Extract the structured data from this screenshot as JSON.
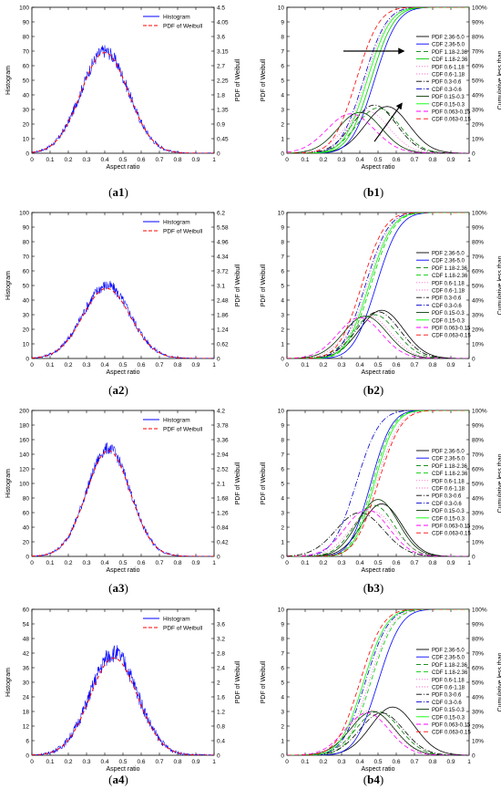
{
  "figure": {
    "captions": {
      "a1": {
        "open": "(",
        "letter": "a1",
        "close": ")"
      },
      "b1": {
        "open": "(",
        "letter": "b1",
        "close": ")"
      },
      "a2": {
        "open": "(",
        "letter": "a2",
        "close": ")"
      },
      "b2": {
        "open": "(",
        "letter": "b2",
        "close": ")"
      },
      "a3": {
        "open": "(",
        "letter": "a3",
        "close": ")"
      },
      "b3": {
        "open": "(",
        "letter": "b3",
        "close": ")"
      },
      "a4": {
        "open": "(",
        "letter": "a4",
        "close": ")"
      },
      "b4": {
        "open": "(",
        "letter": "b4",
        "close": ")"
      }
    }
  },
  "chart_data": [
    {
      "id": "a1",
      "type": "line",
      "xlabel": "Aspect ratio",
      "ylabel": "Histogram",
      "y2label": "PDF of Weibull",
      "xlim": [
        0,
        1
      ],
      "ylim": [
        0,
        100
      ],
      "y2lim": [
        0,
        4.5
      ],
      "xticks": [
        "0",
        "0.1",
        "0.2",
        "0.3",
        "0.4",
        "0.5",
        "0.6",
        "0.7",
        "0.8",
        "0.9",
        "1"
      ],
      "yticks": [
        "0",
        "10",
        "20",
        "30",
        "40",
        "50",
        "60",
        "70",
        "80",
        "90",
        "100"
      ],
      "y2ticks": [
        "0",
        "0.45",
        "0.9",
        "1.35",
        "1.8",
        "2.25",
        "2.7",
        "3.15",
        "3.6",
        "4.05",
        "4.5"
      ],
      "legend": [
        "Histogram",
        "PDF of Weibull"
      ],
      "series": [
        {
          "name": "Histogram",
          "color": "#0000ff",
          "style": "solid",
          "peak_x": 0.4,
          "peak_y": 70,
          "sd": 0.13,
          "noise": 0.15
        },
        {
          "name": "PDF of Weibull",
          "color": "#ff0000",
          "style": "dashed",
          "peak_x": 0.4,
          "peak_y": 69,
          "sd": 0.13
        }
      ]
    },
    {
      "id": "a2",
      "type": "line",
      "xlabel": "Aspect ratio",
      "ylabel": "Histogram",
      "y2label": "PDF of Weibull",
      "xlim": [
        0,
        1
      ],
      "ylim": [
        0,
        100
      ],
      "y2lim": [
        0,
        6.2
      ],
      "xticks": [
        "0",
        "0.1",
        "0.2",
        "0.3",
        "0.4",
        "0.5",
        "0.6",
        "0.7",
        "0.8",
        "0.9",
        "1"
      ],
      "yticks": [
        "0",
        "10",
        "20",
        "30",
        "40",
        "50",
        "60",
        "70",
        "80",
        "90",
        "100"
      ],
      "y2ticks": [
        "0",
        "0.62",
        "1.24",
        "1.86",
        "2.48",
        "3.1",
        "3.72",
        "4.34",
        "4.96",
        "5.58",
        "6.2"
      ],
      "legend": [
        "Histogram",
        "PDF of Weibull"
      ],
      "series": [
        {
          "name": "Histogram",
          "color": "#0000ff",
          "style": "solid",
          "peak_x": 0.41,
          "peak_y": 50,
          "sd": 0.13,
          "noise": 0.18
        },
        {
          "name": "PDF of Weibull",
          "color": "#ff0000",
          "style": "dashed",
          "peak_x": 0.41,
          "peak_y": 48,
          "sd": 0.13
        }
      ]
    },
    {
      "id": "a3",
      "type": "line",
      "xlabel": "Aspect ratio",
      "ylabel": "Histogram",
      "y2label": "PDF of Weibull",
      "xlim": [
        0,
        1
      ],
      "ylim": [
        0,
        200
      ],
      "y2lim": [
        0,
        4.2
      ],
      "xticks": [
        "0",
        "0.1",
        "0.2",
        "0.3",
        "0.4",
        "0.5",
        "0.6",
        "0.7",
        "0.8",
        "0.9",
        "1"
      ],
      "yticks": [
        "0",
        "20",
        "40",
        "60",
        "80",
        "100",
        "120",
        "140",
        "160",
        "180",
        "200"
      ],
      "y2ticks": [
        "0",
        "0.42",
        "0.84",
        "1.26",
        "1.68",
        "2.1",
        "2.52",
        "2.94",
        "3.36",
        "3.78",
        "4.2"
      ],
      "legend": [
        "Histogram",
        "PDF of Weibull"
      ],
      "series": [
        {
          "name": "Histogram",
          "color": "#0000ff",
          "style": "solid",
          "peak_x": 0.42,
          "peak_y": 148,
          "sd": 0.12,
          "noise": 0.12
        },
        {
          "name": "PDF of Weibull",
          "color": "#ff0000",
          "style": "dashed",
          "peak_x": 0.42,
          "peak_y": 145,
          "sd": 0.12
        }
      ]
    },
    {
      "id": "a4",
      "type": "line",
      "xlabel": "Aspect ratio",
      "ylabel": "Histogram",
      "y2label": "PDF of Weibull",
      "xlim": [
        0,
        1
      ],
      "ylim": [
        0,
        60
      ],
      "y2lim": [
        0,
        4
      ],
      "xticks": [
        "0",
        "0.1",
        "0.2",
        "0.3",
        "0.4",
        "0.5",
        "0.6",
        "0.7",
        "0.8",
        "0.9",
        "1"
      ],
      "yticks": [
        "0",
        "6",
        "12",
        "18",
        "24",
        "30",
        "36",
        "42",
        "48",
        "54",
        "60"
      ],
      "y2ticks": [
        "0",
        "0.4",
        "0.8",
        "1.2",
        "1.6",
        "2",
        "2.4",
        "2.8",
        "3.2",
        "3.6",
        "4"
      ],
      "legend": [
        "Histogram",
        "PDF of Weibull"
      ],
      "series": [
        {
          "name": "Histogram",
          "color": "#0000ff",
          "style": "solid",
          "peak_x": 0.45,
          "peak_y": 42,
          "sd": 0.13,
          "noise": 0.2
        },
        {
          "name": "PDF of Weibull",
          "color": "#ff0000",
          "style": "dashed",
          "peak_x": 0.45,
          "peak_y": 40,
          "sd": 0.13
        }
      ]
    },
    {
      "id": "b1",
      "type": "line",
      "xlabel": "Aspect ratio",
      "ylabel": "PDF of Weibull",
      "y2label": "Cumulative less than",
      "xlim": [
        0,
        1
      ],
      "ylim": [
        0,
        10
      ],
      "xticks": [
        "0",
        "0.1",
        "0.2",
        "0.3",
        "0.4",
        "0.5",
        "0.6",
        "0.7",
        "0.8",
        "0.9",
        "1"
      ],
      "yticks": [
        "0",
        "1",
        "2",
        "3",
        "4",
        "5",
        "6",
        "7",
        "8",
        "9",
        "10"
      ],
      "y2ticks": [
        "0",
        "10%",
        "20%",
        "30%",
        "40%",
        "50%",
        "60%",
        "70%",
        "80%",
        "90%",
        "100%"
      ],
      "arrows": true,
      "series": [
        {
          "name": "PDF 2.36-5.0",
          "kind": "pdf",
          "color": "#000000",
          "dash": "",
          "mu": 0.55,
          "sd": 0.12,
          "peak": 3.2
        },
        {
          "name": "CDF 2.36-5.0",
          "kind": "cdf",
          "color": "#0000ff",
          "dash": "",
          "mu": 0.48,
          "sd": 0.1
        },
        {
          "name": "PDF 1.18-2.36",
          "kind": "pdf",
          "color": "#008000",
          "dash": "5,3",
          "mu": 0.5,
          "sd": 0.12,
          "peak": 3.1
        },
        {
          "name": "CDF 1.18-2.36",
          "kind": "cdf",
          "color": "#00cc00",
          "dash": "",
          "mu": 0.46,
          "sd": 0.1
        },
        {
          "name": "PDF 0.6-1.18",
          "kind": "pdf",
          "color": "#ff66cc",
          "dash": "1,2",
          "mu": 0.44,
          "sd": 0.12,
          "peak": 2.9
        },
        {
          "name": "CDF 0.6-1.18",
          "kind": "cdf",
          "color": "#ff66cc",
          "dash": "1,2",
          "mu": 0.43,
          "sd": 0.1
        },
        {
          "name": "PDF 0.3-0.6",
          "kind": "pdf",
          "color": "#000000",
          "dash": "6,2,1,2",
          "mu": 0.48,
          "sd": 0.12,
          "peak": 3.3
        },
        {
          "name": "CDF 0.3-0.6",
          "kind": "cdf",
          "color": "#0000cc",
          "dash": "6,2,1,2",
          "mu": 0.42,
          "sd": 0.1
        },
        {
          "name": "PDF 0.15-0.3",
          "kind": "pdf",
          "color": "#003300",
          "dash": "",
          "mu": 0.4,
          "sd": 0.12,
          "peak": 2.8
        },
        {
          "name": "CDF 0.15-0.3",
          "kind": "cdf",
          "color": "#00ff00",
          "dash": "",
          "mu": 0.44,
          "sd": 0.1
        },
        {
          "name": "PDF 0.063-0.15",
          "kind": "pdf",
          "color": "#ff00ff",
          "dash": "5,3",
          "mu": 0.35,
          "sd": 0.13,
          "peak": 2.7
        },
        {
          "name": "CDF 0.063-0.15",
          "kind": "cdf",
          "color": "#ff0000",
          "dash": "5,3",
          "mu": 0.38,
          "sd": 0.1
        }
      ]
    },
    {
      "id": "b2",
      "type": "line",
      "xlabel": "Aspect ratio",
      "ylabel": "PDF of Weibull",
      "y2label": "Cumulative less than",
      "xlim": [
        0,
        1
      ],
      "ylim": [
        0,
        10
      ],
      "xticks": [
        "0",
        "0.1",
        "0.2",
        "0.3",
        "0.4",
        "0.5",
        "0.6",
        "0.7",
        "0.8",
        "0.9",
        "1"
      ],
      "yticks": [
        "0",
        "1",
        "2",
        "3",
        "4",
        "5",
        "6",
        "7",
        "8",
        "9",
        "10"
      ],
      "y2ticks": [
        "0",
        "10%",
        "20%",
        "30%",
        "40%",
        "50%",
        "60%",
        "70%",
        "80%",
        "90%",
        "100%"
      ],
      "arrows": false,
      "series": [
        {
          "name": "PDF 2.36-5.0",
          "kind": "pdf",
          "color": "#000000",
          "dash": "",
          "mu": 0.52,
          "sd": 0.12,
          "peak": 3.3
        },
        {
          "name": "CDF 2.36-5.0",
          "kind": "cdf",
          "color": "#0000ff",
          "dash": "",
          "mu": 0.49,
          "sd": 0.1
        },
        {
          "name": "PDF 1.18-2.36",
          "kind": "pdf",
          "color": "#008000",
          "dash": "5,3",
          "mu": 0.48,
          "sd": 0.12,
          "peak": 3.0
        },
        {
          "name": "CDF 1.18-2.36",
          "kind": "cdf",
          "color": "#00cc00",
          "dash": "5,3",
          "mu": 0.46,
          "sd": 0.1
        },
        {
          "name": "PDF 0.6-1.18",
          "kind": "pdf",
          "color": "#ff66cc",
          "dash": "1,2",
          "mu": 0.45,
          "sd": 0.12,
          "peak": 2.9
        },
        {
          "name": "CDF 0.6-1.18",
          "kind": "cdf",
          "color": "#ff66cc",
          "dash": "1,2",
          "mu": 0.44,
          "sd": 0.1
        },
        {
          "name": "PDF 0.3-0.6",
          "kind": "pdf",
          "color": "#000000",
          "dash": "6,2,1,2",
          "mu": 0.5,
          "sd": 0.12,
          "peak": 3.2
        },
        {
          "name": "CDF 0.3-0.6",
          "kind": "cdf",
          "color": "#0000cc",
          "dash": "6,2,1,2",
          "mu": 0.43,
          "sd": 0.1
        },
        {
          "name": "PDF 0.15-0.3",
          "kind": "pdf",
          "color": "#003300",
          "dash": "",
          "mu": 0.43,
          "sd": 0.12,
          "peak": 2.9
        },
        {
          "name": "CDF 0.15-0.3",
          "kind": "cdf",
          "color": "#00ff00",
          "dash": "",
          "mu": 0.45,
          "sd": 0.1
        },
        {
          "name": "PDF 0.063-0.15",
          "kind": "pdf",
          "color": "#ff00ff",
          "dash": "5,3",
          "mu": 0.4,
          "sd": 0.12,
          "peak": 2.8
        },
        {
          "name": "CDF 0.063-0.15",
          "kind": "cdf",
          "color": "#ff0000",
          "dash": "5,3",
          "mu": 0.41,
          "sd": 0.1
        }
      ]
    },
    {
      "id": "b3",
      "type": "line",
      "xlabel": "Aspect ratio",
      "ylabel": "PDF of Weibull",
      "y2label": "Cumulative less than",
      "xlim": [
        0,
        1
      ],
      "ylim": [
        0,
        10
      ],
      "xticks": [
        "0",
        "0.1",
        "0.2",
        "0.3",
        "0.4",
        "0.5",
        "0.6",
        "0.7",
        "0.8",
        "0.9",
        "1"
      ],
      "yticks": [
        "0",
        "1",
        "2",
        "3",
        "4",
        "5",
        "6",
        "7",
        "8",
        "9",
        "10"
      ],
      "y2ticks": [
        "0",
        "10%",
        "20%",
        "30%",
        "40%",
        "50%",
        "60%",
        "70%",
        "80%",
        "90%",
        "100%"
      ],
      "arrows": false,
      "series": [
        {
          "name": "PDF 2.36-5.0",
          "kind": "pdf",
          "color": "#000000",
          "dash": "",
          "mu": 0.52,
          "sd": 0.11,
          "peak": 3.6
        },
        {
          "name": "CDF 2.36-5.0",
          "kind": "cdf",
          "color": "#0000ff",
          "dash": "",
          "mu": 0.46,
          "sd": 0.09
        },
        {
          "name": "PDF 1.18-2.36",
          "kind": "pdf",
          "color": "#008000",
          "dash": "5,3",
          "mu": 0.48,
          "sd": 0.11,
          "peak": 3.5
        },
        {
          "name": "CDF 1.18-2.36",
          "kind": "cdf",
          "color": "#00cc00",
          "dash": "5,3",
          "mu": 0.47,
          "sd": 0.09
        },
        {
          "name": "PDF 0.6-1.18",
          "kind": "pdf",
          "color": "#ff66cc",
          "dash": "1,2",
          "mu": 0.47,
          "sd": 0.12,
          "peak": 3.1
        },
        {
          "name": "CDF 0.6-1.18",
          "kind": "cdf",
          "color": "#ff66cc",
          "dash": "1,2",
          "mu": 0.49,
          "sd": 0.1
        },
        {
          "name": "PDF 0.3-0.6",
          "kind": "pdf",
          "color": "#000000",
          "dash": "6,2,1,2",
          "mu": 0.4,
          "sd": 0.13,
          "peak": 3.0
        },
        {
          "name": "CDF 0.3-0.6",
          "kind": "cdf",
          "color": "#0000cc",
          "dash": "6,2,1,2",
          "mu": 0.38,
          "sd": 0.1
        },
        {
          "name": "PDF 0.15-0.3",
          "kind": "pdf",
          "color": "#003300",
          "dash": "",
          "mu": 0.5,
          "sd": 0.11,
          "peak": 3.9
        },
        {
          "name": "CDF 0.15-0.3",
          "kind": "cdf",
          "color": "#00ff00",
          "dash": "",
          "mu": 0.48,
          "sd": 0.09
        },
        {
          "name": "PDF 0.063-0.15",
          "kind": "pdf",
          "color": "#ff00ff",
          "dash": "5,3",
          "mu": 0.44,
          "sd": 0.12,
          "peak": 3.2
        },
        {
          "name": "CDF 0.063-0.15",
          "kind": "cdf",
          "color": "#ff0000",
          "dash": "5,3",
          "mu": 0.5,
          "sd": 0.1
        }
      ]
    },
    {
      "id": "b4",
      "type": "line",
      "xlabel": "Aspect ratio",
      "ylabel": "PDF of Weibull",
      "y2label": "Cumulative less than",
      "xlim": [
        0,
        1
      ],
      "ylim": [
        0,
        10
      ],
      "xticks": [
        "0",
        "0.1",
        "0.2",
        "0.3",
        "0.4",
        "0.5",
        "0.6",
        "0.7",
        "0.8",
        "0.9",
        "1"
      ],
      "yticks": [
        "0",
        "1",
        "2",
        "3",
        "4",
        "5",
        "6",
        "7",
        "8",
        "9",
        "10"
      ],
      "y2ticks": [
        "0",
        "10%",
        "20%",
        "30%",
        "40%",
        "50%",
        "60%",
        "70%",
        "80%",
        "90%",
        "100%"
      ],
      "arrows": false,
      "series": [
        {
          "name": "PDF 2.36-5.0",
          "kind": "pdf",
          "color": "#000000",
          "dash": "",
          "mu": 0.58,
          "sd": 0.12,
          "peak": 3.3
        },
        {
          "name": "CDF 2.36-5.0",
          "kind": "cdf",
          "color": "#0000ff",
          "dash": "",
          "mu": 0.5,
          "sd": 0.1
        },
        {
          "name": "PDF 1.18-2.36",
          "kind": "pdf",
          "color": "#008000",
          "dash": "5,3",
          "mu": 0.5,
          "sd": 0.12,
          "peak": 3.0
        },
        {
          "name": "CDF 1.18-2.36",
          "kind": "cdf",
          "color": "#00cc00",
          "dash": "5,3",
          "mu": 0.46,
          "sd": 0.1
        },
        {
          "name": "PDF 0.6-1.18",
          "kind": "pdf",
          "color": "#ff66cc",
          "dash": "1,2",
          "mu": 0.46,
          "sd": 0.12,
          "peak": 3.1
        },
        {
          "name": "CDF 0.6-1.18",
          "kind": "cdf",
          "color": "#ff66cc",
          "dash": "1,2",
          "mu": 0.45,
          "sd": 0.1
        },
        {
          "name": "PDF 0.3-0.6",
          "kind": "pdf",
          "color": "#000000",
          "dash": "6,2,1,2",
          "mu": 0.52,
          "sd": 0.12,
          "peak": 2.9
        },
        {
          "name": "CDF 0.3-0.6",
          "kind": "cdf",
          "color": "#0000cc",
          "dash": "6,2,1,2",
          "mu": 0.43,
          "sd": 0.1
        },
        {
          "name": "PDF 0.15-0.3",
          "kind": "pdf",
          "color": "#003300",
          "dash": "",
          "mu": 0.47,
          "sd": 0.12,
          "peak": 3.0
        },
        {
          "name": "CDF 0.15-0.3",
          "kind": "cdf",
          "color": "#00ff00",
          "dash": "",
          "mu": 0.42,
          "sd": 0.1
        },
        {
          "name": "PDF 0.063-0.15",
          "kind": "pdf",
          "color": "#ff00ff",
          "dash": "5,3",
          "mu": 0.44,
          "sd": 0.12,
          "peak": 2.9
        },
        {
          "name": "CDF 0.063-0.15",
          "kind": "cdf",
          "color": "#ff0000",
          "dash": "5,3",
          "mu": 0.4,
          "sd": 0.1
        }
      ]
    }
  ]
}
